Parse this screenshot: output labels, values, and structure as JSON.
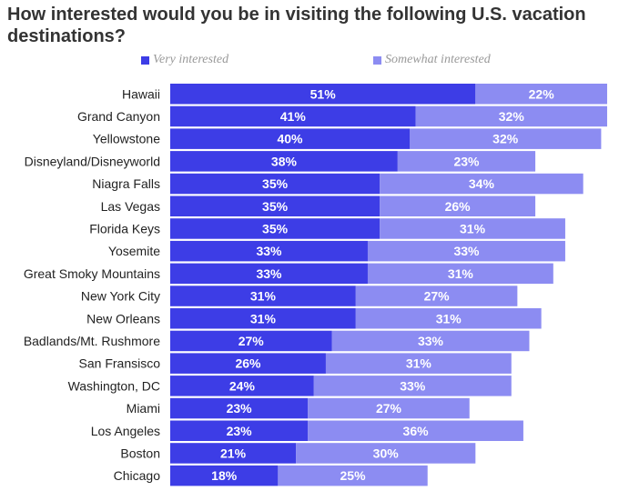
{
  "chart_data": {
    "type": "bar",
    "orientation": "horizontal",
    "stacked": true,
    "title": "How interested would you be in visiting the following U.S. vacation destinations?",
    "categories": [
      "Hawaii",
      "Grand Canyon",
      "Yellowstone",
      "Disneyland/Disneyworld",
      "Niagra Falls",
      "Las Vegas",
      "Florida Keys",
      "Yosemite",
      "Great Smoky Mountains",
      "New York City",
      "New Orleans",
      "Badlands/Mt. Rushmore",
      "San Fransisco",
      "Washington, DC",
      "Miami",
      "Los Angeles",
      "Boston",
      "Chicago"
    ],
    "series": [
      {
        "name": "Very interested",
        "color": "#3d3de6",
        "values": [
          51,
          41,
          40,
          38,
          35,
          35,
          35,
          33,
          33,
          31,
          31,
          27,
          26,
          24,
          23,
          23,
          21,
          18
        ]
      },
      {
        "name": "Somewhat interested",
        "color": "#8c8cf2",
        "values": [
          22,
          32,
          32,
          23,
          34,
          26,
          31,
          33,
          31,
          27,
          31,
          33,
          31,
          33,
          27,
          36,
          30,
          25
        ]
      }
    ],
    "value_suffix": "%",
    "legend_position": "top",
    "grid": false
  }
}
